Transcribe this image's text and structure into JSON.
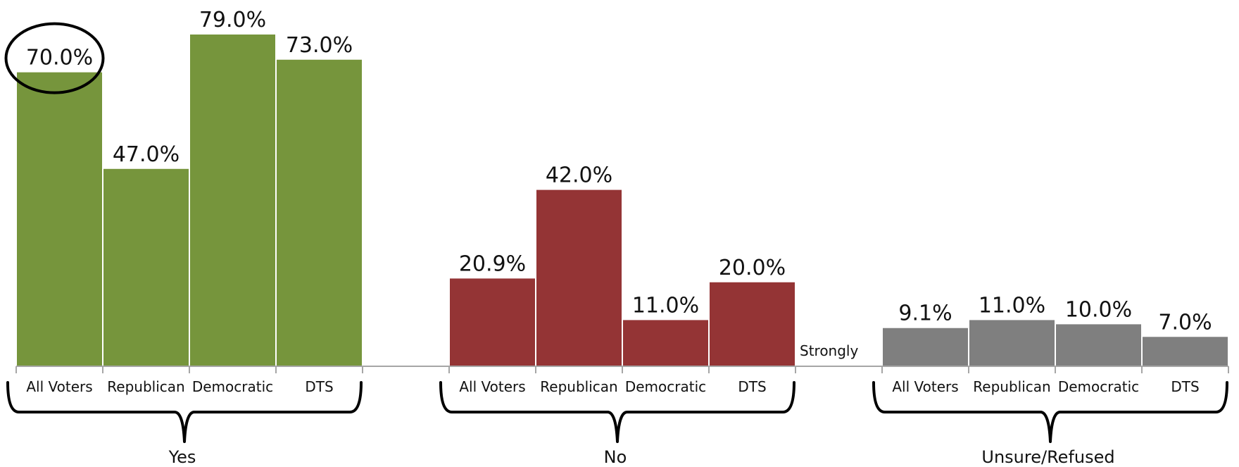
{
  "chart_data": {
    "type": "bar",
    "ylim": [
      0,
      79
    ],
    "grid": false,
    "legend": "none",
    "groups": [
      {
        "label": "Yes",
        "color": "#76953C",
        "categories": [
          "All Voters",
          "Republican",
          "Democratic",
          "DTS"
        ],
        "values": [
          70.0,
          47.0,
          79.0,
          73.0
        ],
        "value_labels": [
          "70.0%",
          "47.0%",
          "79.0%",
          "73.0%"
        ]
      },
      {
        "label": "No",
        "color": "#943435",
        "categories": [
          "All Voters",
          "Republican",
          "Democratic",
          "DTS"
        ],
        "values": [
          20.9,
          42.0,
          11.0,
          20.0
        ],
        "value_labels": [
          "20.9%",
          "42.0%",
          "11.0%",
          "20.0%"
        ]
      },
      {
        "label": "Unsure/Refused",
        "color": "#7F7F7F",
        "categories": [
          "All Voters",
          "Republican",
          "Democratic",
          "DTS"
        ],
        "values": [
          9.1,
          11.0,
          10.0,
          7.0
        ],
        "value_labels": [
          "9.1%",
          "11.0%",
          "10.0%",
          "7.0%"
        ]
      }
    ],
    "annotations": {
      "stray_label": "Strongly",
      "highlighted_value": "70.0%"
    },
    "colors": {
      "axis": "#A6A6A6",
      "bracket": "#000000",
      "text": "#111111"
    }
  }
}
